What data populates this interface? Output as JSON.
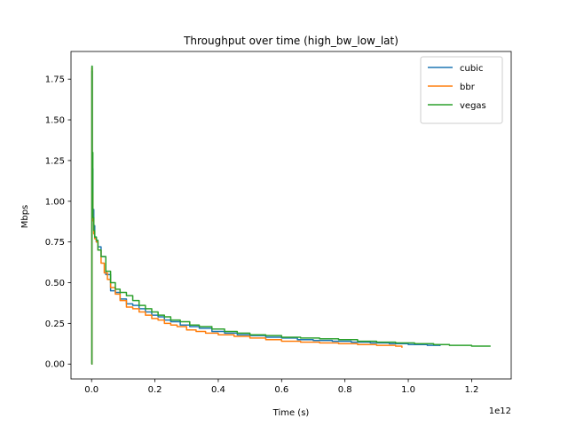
{
  "chart_data": {
    "type": "line",
    "title": "Throughput over time (high_bw_low_lat)",
    "xlabel": "Time (s)",
    "ylabel": "Mbps",
    "x_offset_label": "1e12",
    "xlim": [
      -0.065,
      1.325
    ],
    "ylim": [
      -0.0915,
      1.92
    ],
    "xticks": [
      0.0,
      0.2,
      0.4,
      0.6,
      0.8,
      1.0,
      1.2
    ],
    "xtick_labels": [
      "0.0",
      "0.2",
      "0.4",
      "0.6",
      "0.8",
      "1.0",
      "1.2"
    ],
    "yticks": [
      0.0,
      0.25,
      0.5,
      0.75,
      1.0,
      1.25,
      1.5,
      1.75
    ],
    "ytick_labels": [
      "0.00",
      "0.25",
      "0.50",
      "0.75",
      "1.00",
      "1.25",
      "1.50",
      "1.75"
    ],
    "grid": false,
    "legend_position": "top-right",
    "series": [
      {
        "name": "cubic",
        "color": "#1f77b4",
        "x": [
          0.0,
          0.001,
          0.002,
          0.004,
          0.007,
          0.01,
          0.015,
          0.02,
          0.03,
          0.045,
          0.06,
          0.075,
          0.09,
          0.11,
          0.13,
          0.15,
          0.17,
          0.19,
          0.21,
          0.23,
          0.25,
          0.28,
          0.31,
          0.34,
          0.38,
          0.42,
          0.46,
          0.5,
          0.55,
          0.6,
          0.65,
          0.7,
          0.76,
          0.82,
          0.88,
          0.94,
          1.0,
          1.06,
          1.1
        ],
        "y": [
          0.0,
          1.8,
          1.2,
          0.95,
          0.85,
          0.78,
          0.75,
          0.72,
          0.66,
          0.55,
          0.45,
          0.44,
          0.4,
          0.37,
          0.36,
          0.34,
          0.32,
          0.3,
          0.29,
          0.27,
          0.26,
          0.24,
          0.23,
          0.22,
          0.2,
          0.19,
          0.18,
          0.175,
          0.165,
          0.16,
          0.15,
          0.145,
          0.14,
          0.135,
          0.13,
          0.125,
          0.12,
          0.115,
          0.11
        ]
      },
      {
        "name": "bbr",
        "color": "#ff7f0e",
        "x": [
          0.0,
          0.001,
          0.002,
          0.004,
          0.007,
          0.01,
          0.015,
          0.02,
          0.03,
          0.04,
          0.05,
          0.06,
          0.075,
          0.09,
          0.11,
          0.13,
          0.15,
          0.17,
          0.19,
          0.21,
          0.23,
          0.25,
          0.27,
          0.3,
          0.33,
          0.36,
          0.4,
          0.45,
          0.5,
          0.55,
          0.6,
          0.66,
          0.72,
          0.78,
          0.84,
          0.9,
          0.96,
          0.98
        ],
        "y": [
          0.0,
          1.82,
          1.05,
          0.88,
          0.8,
          0.77,
          0.75,
          0.7,
          0.62,
          0.56,
          0.52,
          0.47,
          0.43,
          0.39,
          0.35,
          0.34,
          0.32,
          0.3,
          0.28,
          0.27,
          0.25,
          0.24,
          0.23,
          0.21,
          0.2,
          0.19,
          0.18,
          0.17,
          0.16,
          0.15,
          0.14,
          0.135,
          0.13,
          0.125,
          0.12,
          0.115,
          0.11,
          0.1
        ]
      },
      {
        "name": "vegas",
        "color": "#2ca02c",
        "x": [
          0.0,
          0.001,
          0.002,
          0.004,
          0.007,
          0.01,
          0.015,
          0.02,
          0.03,
          0.045,
          0.06,
          0.075,
          0.09,
          0.11,
          0.13,
          0.15,
          0.17,
          0.19,
          0.21,
          0.23,
          0.25,
          0.28,
          0.31,
          0.34,
          0.38,
          0.42,
          0.46,
          0.5,
          0.55,
          0.6,
          0.66,
          0.72,
          0.78,
          0.84,
          0.9,
          0.96,
          1.02,
          1.08,
          1.13,
          1.2,
          1.26
        ],
        "y": [
          0.0,
          1.83,
          1.3,
          0.9,
          0.82,
          0.78,
          0.76,
          0.7,
          0.66,
          0.57,
          0.5,
          0.46,
          0.44,
          0.42,
          0.39,
          0.36,
          0.34,
          0.32,
          0.3,
          0.29,
          0.27,
          0.26,
          0.24,
          0.23,
          0.215,
          0.2,
          0.19,
          0.18,
          0.175,
          0.165,
          0.16,
          0.155,
          0.15,
          0.14,
          0.135,
          0.13,
          0.125,
          0.12,
          0.115,
          0.11,
          0.11
        ]
      }
    ]
  }
}
